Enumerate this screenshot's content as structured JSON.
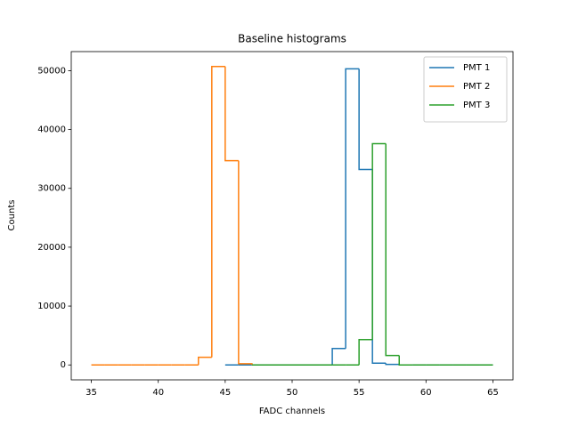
{
  "chart_data": {
    "type": "histogram",
    "title": "Baseline histograms",
    "xlabel": "FADC channels",
    "ylabel": "Counts",
    "xlim": [
      33.5,
      66.5
    ],
    "ylim": [
      -2535,
      53235
    ],
    "xticks": [
      35,
      40,
      45,
      50,
      55,
      60,
      65
    ],
    "yticks": [
      0,
      10000,
      20000,
      30000,
      40000,
      50000
    ],
    "legend": "upper right",
    "series": [
      {
        "name": "PMT 1",
        "color": "#1f77b4",
        "bins": [
          45,
          46,
          47,
          48,
          49,
          50,
          51,
          52,
          53,
          54,
          55,
          56,
          57,
          58,
          59,
          60,
          61,
          62,
          63,
          64,
          65
        ],
        "values": [
          0,
          0,
          0,
          0,
          0,
          0,
          0,
          0,
          2800,
          50300,
          33200,
          300,
          100,
          0,
          0,
          0,
          0,
          0,
          0,
          0
        ]
      },
      {
        "name": "PMT 2",
        "color": "#ff7f0e",
        "bins": [
          35,
          36,
          37,
          38,
          39,
          40,
          41,
          42,
          43,
          44,
          45,
          46,
          47
        ],
        "values": [
          0,
          0,
          0,
          0,
          0,
          0,
          0,
          0,
          1300,
          50700,
          34700,
          200
        ]
      },
      {
        "name": "PMT 3",
        "color": "#2ca02c",
        "bins": [
          47,
          48,
          49,
          50,
          51,
          52,
          53,
          54,
          55,
          56,
          57,
          58,
          59,
          60,
          61,
          62,
          63,
          64,
          65
        ],
        "values": [
          0,
          0,
          0,
          0,
          0,
          0,
          0,
          0,
          4300,
          37600,
          1600,
          0,
          0,
          0,
          0,
          0,
          0,
          0
        ]
      }
    ]
  }
}
